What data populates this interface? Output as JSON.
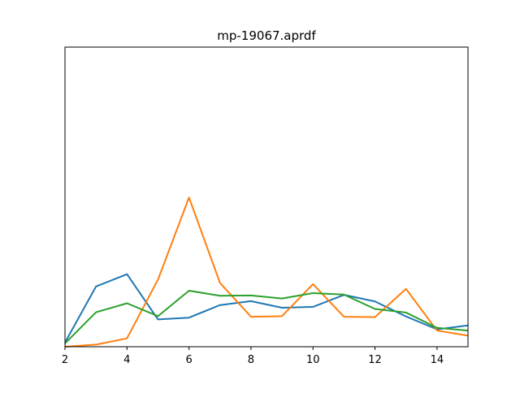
{
  "chart_data": {
    "type": "line",
    "title": "mp-19067.aprdf",
    "xlabel": "",
    "ylabel": "",
    "xlim": [
      2,
      15
    ],
    "ylim": [
      0,
      1
    ],
    "x_ticks": [
      2,
      4,
      6,
      8,
      10,
      12,
      14
    ],
    "y_ticks": [],
    "grid": false,
    "legend": "none",
    "x": [
      2,
      3,
      4,
      5,
      6,
      7,
      8,
      9,
      10,
      11,
      12,
      13,
      14,
      15
    ],
    "series": [
      {
        "color": "#1f77b4",
        "values": [
          0.014,
          0.201,
          0.242,
          0.091,
          0.097,
          0.139,
          0.152,
          0.13,
          0.133,
          0.173,
          0.151,
          0.101,
          0.058,
          0.071
        ]
      },
      {
        "color": "#ff7f0e",
        "values": [
          0.0,
          0.007,
          0.028,
          0.224,
          0.498,
          0.213,
          0.1,
          0.102,
          0.209,
          0.1,
          0.099,
          0.193,
          0.054,
          0.037
        ]
      },
      {
        "color": "#2ca02c",
        "values": [
          0.011,
          0.115,
          0.145,
          0.102,
          0.187,
          0.17,
          0.171,
          0.161,
          0.179,
          0.174,
          0.126,
          0.114,
          0.063,
          0.054
        ]
      }
    ]
  }
}
